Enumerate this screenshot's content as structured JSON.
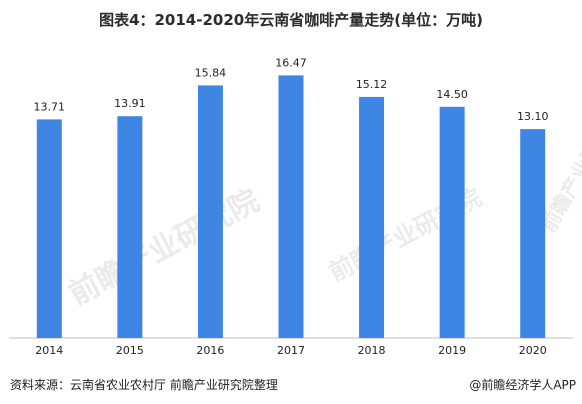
{
  "title": "图表4：2014-2020年云南省咖啡产量走势(单位：万吨)",
  "watermark": "前瞻产业研究院",
  "footer": {
    "source": "资料来源：云南省农业农村厅 前瞻产业研究院整理",
    "brand": "@前瞻经济学人APP"
  },
  "colors": {
    "bar": "#3f85e3",
    "axis": "#bfbfbf",
    "text": "#222222"
  },
  "chart_data": {
    "type": "bar",
    "title": "图表4：2014-2020年云南省咖啡产量走势(单位：万吨)",
    "categories": [
      "2014",
      "2015",
      "2016",
      "2017",
      "2018",
      "2019",
      "2020"
    ],
    "values": [
      13.71,
      13.91,
      15.84,
      16.47,
      15.12,
      14.5,
      13.1
    ],
    "value_labels": [
      "13.71",
      "13.91",
      "15.84",
      "16.47",
      "15.12",
      "14.50",
      "13.10"
    ],
    "ylim": [
      0,
      18
    ],
    "grid": false,
    "legend": "none",
    "xlabel": "",
    "ylabel": ""
  }
}
